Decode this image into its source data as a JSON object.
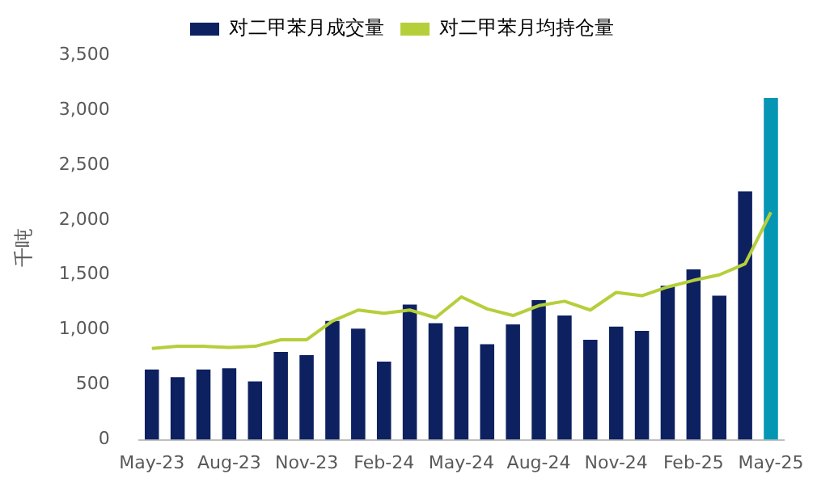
{
  "chart_data": {
    "type": "bar",
    "ylabel": "千吨",
    "categories": [
      "May-23",
      null,
      null,
      "Aug-23",
      null,
      null,
      "Nov-23",
      null,
      null,
      "Feb-24",
      null,
      null,
      "May-24",
      null,
      null,
      "Aug-24",
      null,
      null,
      "Nov-24",
      null,
      null,
      "Feb-25",
      null,
      null,
      "May-25"
    ],
    "series": [
      {
        "name": "对二甲苯月成交量",
        "color": "#0d2160",
        "colors": [
          "#0d2160",
          "#0d2160",
          "#0d2160",
          "#0d2160",
          "#0d2160",
          "#0d2160",
          "#0d2160",
          "#0d2160",
          "#0d2160",
          "#0d2160",
          "#0d2160",
          "#0d2160",
          "#0d2160",
          "#0d2160",
          "#0d2160",
          "#0d2160",
          "#0d2160",
          "#0d2160",
          "#0d2160",
          "#0d2160",
          "#0d2160",
          "#0d2160",
          "#0d2160",
          "#0d2160",
          "#0596b4"
        ],
        "values": [
          640,
          570,
          640,
          650,
          530,
          800,
          770,
          1080,
          1010,
          710,
          1230,
          1060,
          1030,
          870,
          1050,
          1270,
          1130,
          910,
          1030,
          990,
          1400,
          1550,
          1310,
          2260,
          3110
        ]
      },
      {
        "name": "对二甲苯月均持仓量",
        "type": "line",
        "color": "#b5cf3b",
        "values": [
          830,
          850,
          850,
          840,
          850,
          910,
          910,
          1080,
          1180,
          1150,
          1180,
          1110,
          1300,
          1190,
          1130,
          1220,
          1260,
          1180,
          1340,
          1310,
          1390,
          1450,
          1500,
          1600,
          2070
        ]
      }
    ],
    "ylim": [
      0,
      3500
    ],
    "yticks": [
      {
        "value": 0,
        "label": "0"
      },
      {
        "value": 500,
        "label": "500"
      },
      {
        "value": 1000,
        "label": "1,000"
      },
      {
        "value": 1500,
        "label": "1,500"
      },
      {
        "value": 2000,
        "label": "2,000"
      },
      {
        "value": 2500,
        "label": "2,500"
      },
      {
        "value": 3000,
        "label": "3,000"
      },
      {
        "value": 3500,
        "label": "3,500"
      }
    ],
    "grid": false,
    "legend": "top",
    "marker": "none",
    "line_style": "solid"
  }
}
